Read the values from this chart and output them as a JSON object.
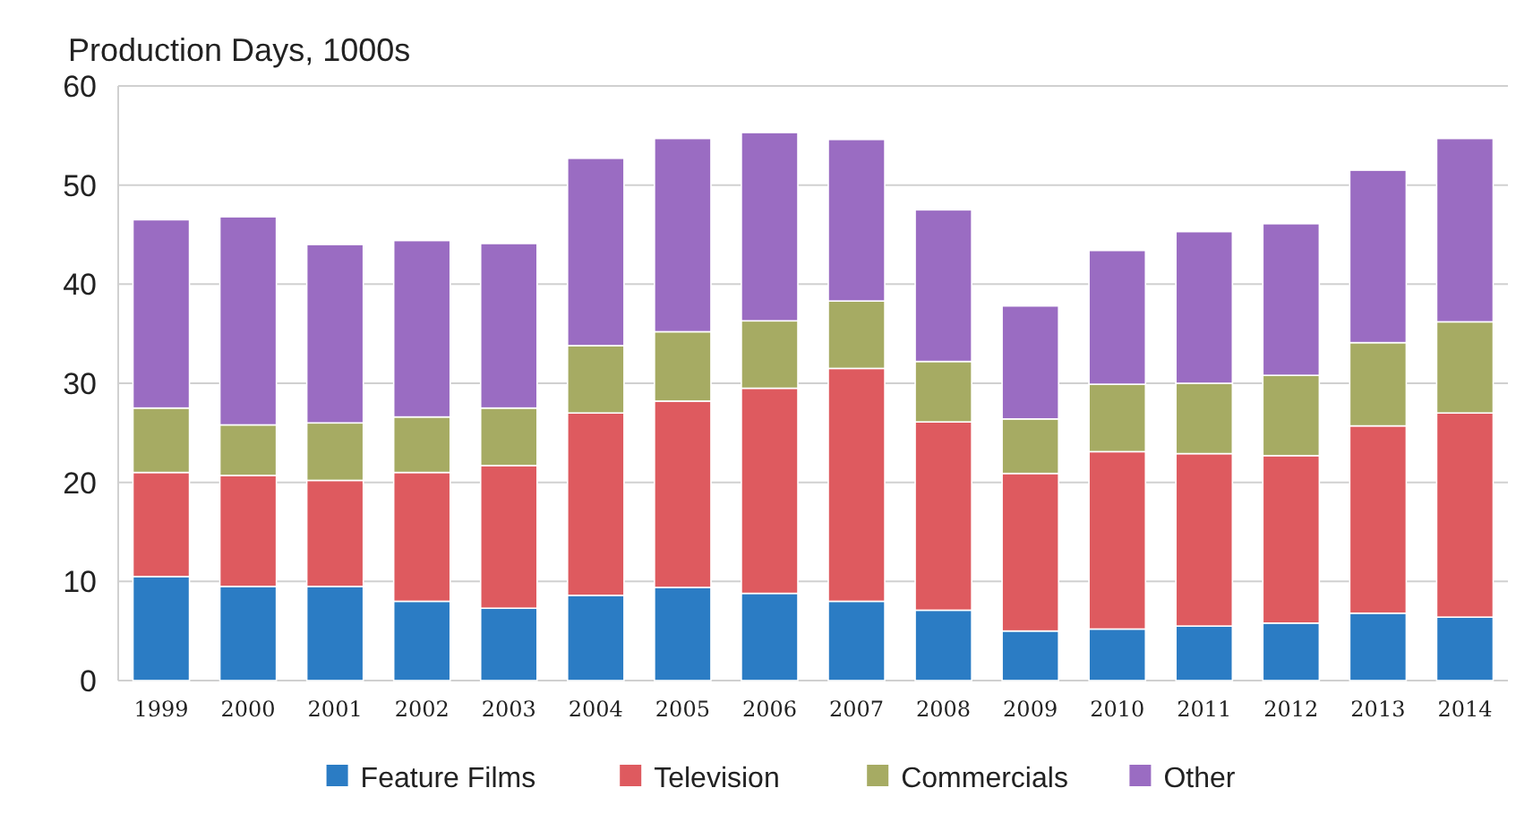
{
  "chart_data": {
    "type": "bar",
    "stacked": true,
    "ylabel": "Production Days, 1000s",
    "categories": [
      "1999",
      "2000",
      "2001",
      "2002",
      "2003",
      "2004",
      "2005",
      "2006",
      "2007",
      "2008",
      "2009",
      "2010",
      "2011",
      "2012",
      "2013",
      "2014"
    ],
    "series": [
      {
        "name": "Feature Films",
        "color": "#2b7cc4",
        "values": [
          10.5,
          9.5,
          9.5,
          8,
          7.3,
          8.6,
          9.4,
          8.8,
          8,
          7.1,
          5,
          5.2,
          5.5,
          5.8,
          6.8,
          6.4
        ]
      },
      {
        "name": "Television",
        "color": "#de5a5f",
        "values": [
          10.5,
          11.2,
          10.7,
          13,
          14.4,
          18.4,
          18.8,
          20.7,
          23.5,
          19,
          15.9,
          17.9,
          17.4,
          16.9,
          18.9,
          20.6
        ]
      },
      {
        "name": "Commercials",
        "color": "#a6ab63",
        "values": [
          6.5,
          5.1,
          5.8,
          5.6,
          5.8,
          6.8,
          7,
          6.8,
          6.8,
          6.1,
          5.5,
          6.8,
          7.1,
          8.1,
          8.4,
          9.2
        ]
      },
      {
        "name": "Other",
        "color": "#9a6cc2",
        "values": [
          19,
          21,
          18,
          17.8,
          16.6,
          18.9,
          19.5,
          19,
          16.3,
          15.3,
          11.4,
          13.5,
          15.3,
          15.3,
          17.4,
          18.5
        ]
      }
    ],
    "ylim": [
      0,
      60
    ],
    "yticks": [
      0,
      10,
      20,
      30,
      40,
      50,
      60
    ],
    "grid": "y",
    "legend": "bottom"
  }
}
